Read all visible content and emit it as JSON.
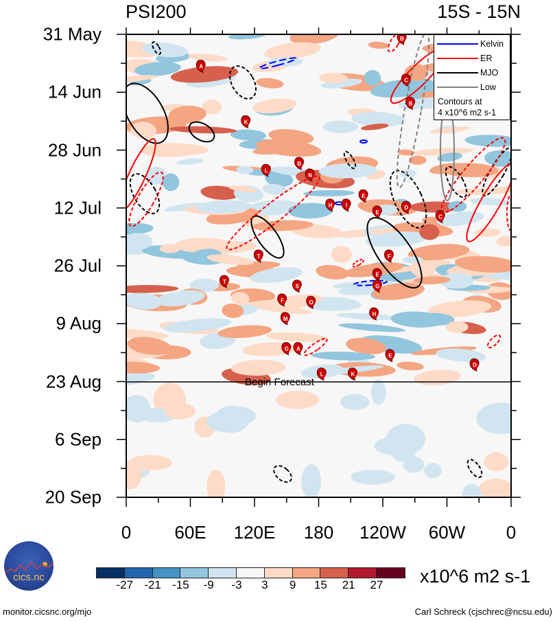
{
  "chart_data": {
    "type": "heatmap",
    "title_left": "PSI200",
    "title_right": "15S - 15N",
    "xlabel": "",
    "ylabel": "",
    "x_tick_labels": [
      "0",
      "60E",
      "120E",
      "180",
      "120W",
      "60W",
      "0"
    ],
    "x_range_deg_east": [
      0,
      360
    ],
    "y_tick_labels": [
      "31 May",
      "14 Jun",
      "28 Jun",
      "12 Jul",
      "26 Jul",
      "9 Aug",
      "23 Aug",
      "6 Sep",
      "20 Sep"
    ],
    "y_direction": "time increasing downward",
    "forecast_start": "23 Aug",
    "forecast_label": "Begin Forecast",
    "colorbar": {
      "units": "x10^6 m2 s-1",
      "levels": [
        -27,
        -21,
        -15,
        -9,
        -3,
        3,
        9,
        15,
        21,
        27
      ],
      "colors": [
        "#053061",
        "#2166ac",
        "#4393c3",
        "#92c5de",
        "#d1e5f0",
        "#f7f7f7",
        "#fddbc7",
        "#f4a582",
        "#d6604d",
        "#b2182b",
        "#67001f"
      ]
    },
    "legend": {
      "position": "top-right",
      "entries": [
        {
          "name": "Kelvin",
          "color": "#0000ff"
        },
        {
          "name": "ER",
          "color": "#ff0000"
        },
        {
          "name": "MJO",
          "color": "#000000"
        },
        {
          "name": "Low",
          "color": "#808080"
        }
      ],
      "note_line1": "Contours at",
      "note_line2": "4 x10^6 m2 s-1"
    },
    "storms": [
      {
        "letter": "A",
        "lon": 70,
        "date_frac": 0.06
      },
      {
        "letter": "K",
        "lon": 112,
        "date_frac": 0.18
      },
      {
        "letter": "L",
        "lon": 131,
        "date_frac": 0.285
      },
      {
        "letter": "B",
        "lon": 162,
        "date_frac": 0.27
      },
      {
        "letter": "N",
        "lon": 172,
        "date_frac": 0.295
      },
      {
        "letter": "H",
        "lon": 191,
        "date_frac": 0.36
      },
      {
        "letter": "I",
        "lon": 206,
        "date_frac": 0.36
      },
      {
        "letter": "E",
        "lon": 222,
        "date_frac": 0.34
      },
      {
        "letter": "E",
        "lon": 235,
        "date_frac": 0.375
      },
      {
        "letter": "D",
        "lon": 262,
        "date_frac": 0.365
      },
      {
        "letter": "C",
        "lon": 294,
        "date_frac": 0.385
      },
      {
        "letter": "B",
        "lon": 258,
        "date_frac": 0.0
      },
      {
        "letter": "C",
        "lon": 262,
        "date_frac": 0.09
      },
      {
        "letter": "B",
        "lon": 266,
        "date_frac": 0.14
      },
      {
        "letter": "T",
        "lon": 124,
        "date_frac": 0.47
      },
      {
        "letter": "F",
        "lon": 246,
        "date_frac": 0.47
      },
      {
        "letter": "E",
        "lon": 235,
        "date_frac": 0.51
      },
      {
        "letter": "G",
        "lon": 235,
        "date_frac": 0.535
      },
      {
        "letter": "T",
        "lon": 92,
        "date_frac": 0.525
      },
      {
        "letter": "S",
        "lon": 160,
        "date_frac": 0.535
      },
      {
        "letter": "F",
        "lon": 146,
        "date_frac": 0.565
      },
      {
        "letter": "O",
        "lon": 173,
        "date_frac": 0.57
      },
      {
        "letter": "H",
        "lon": 232,
        "date_frac": 0.595
      },
      {
        "letter": "M",
        "lon": 149,
        "date_frac": 0.605
      },
      {
        "letter": "G",
        "lon": 150,
        "date_frac": 0.67
      },
      {
        "letter": "A",
        "lon": 161,
        "date_frac": 0.67
      },
      {
        "letter": "E",
        "lon": 247,
        "date_frac": 0.685
      },
      {
        "letter": "D",
        "lon": 326,
        "date_frac": 0.705
      },
      {
        "letter": "L",
        "lon": 183,
        "date_frac": 0.725
      },
      {
        "letter": "K",
        "lon": 212,
        "date_frac": 0.725
      }
    ]
  },
  "logo": {
    "text": "cics.nc",
    "ring_text": "Cooperative Institute for Climate and Satellites"
  },
  "footer": {
    "left": "monitor.cicsnc.org/mjo",
    "right": "Carl Schreck (cjschrec@ncsu.edu)"
  }
}
